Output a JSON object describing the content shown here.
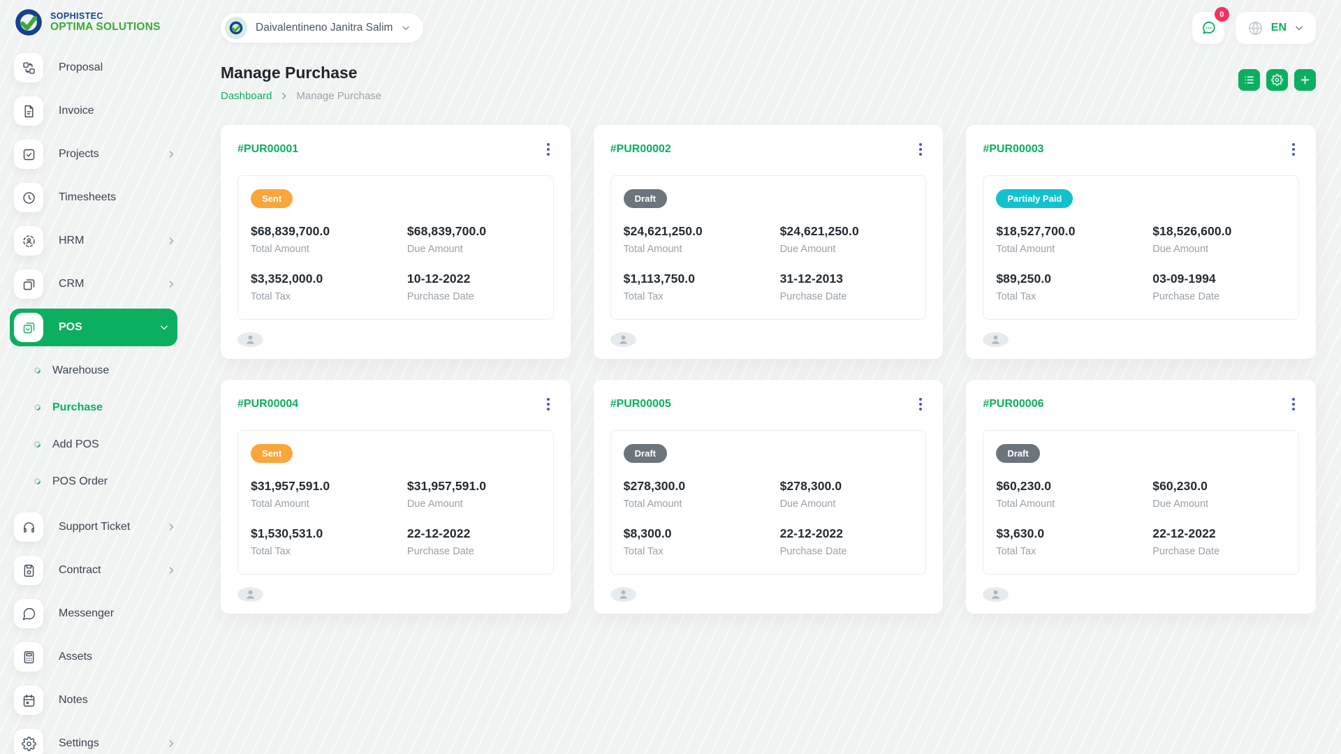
{
  "brand": {
    "line1": "SOPHISTEC",
    "line2": "OPTIMA SOLUTIONS"
  },
  "header": {
    "user_name": "Daivalentineno Janitra Salim",
    "messages_badge": "0",
    "language": "EN"
  },
  "page": {
    "title": "Manage Purchase",
    "breadcrumb_root": "Dashboard",
    "breadcrumb_current": "Manage Purchase"
  },
  "labels": {
    "total_amount": "Total Amount",
    "due_amount": "Due Amount",
    "total_tax": "Total Tax",
    "purchase_date": "Purchase Date"
  },
  "sidebar": {
    "items": [
      {
        "label": "Proposal",
        "icon": "proposal-icon",
        "chevron": false
      },
      {
        "label": "Invoice",
        "icon": "invoice-icon",
        "chevron": false
      },
      {
        "label": "Projects",
        "icon": "projects-icon",
        "chevron": true
      },
      {
        "label": "Timesheets",
        "icon": "timesheets-icon",
        "chevron": false
      },
      {
        "label": "HRM",
        "icon": "hrm-icon",
        "chevron": true
      },
      {
        "label": "CRM",
        "icon": "crm-icon",
        "chevron": true
      },
      {
        "label": "POS",
        "icon": "pos-icon",
        "chevron": true,
        "active": true,
        "expanded": true,
        "children": [
          {
            "label": "Warehouse",
            "active": false
          },
          {
            "label": "Purchase",
            "active": true
          },
          {
            "label": "Add POS",
            "active": false
          },
          {
            "label": "POS Order",
            "active": false
          }
        ]
      },
      {
        "label": "Support Ticket",
        "icon": "support-ticket-icon",
        "chevron": true
      },
      {
        "label": "Contract",
        "icon": "contract-icon",
        "chevron": true
      },
      {
        "label": "Messenger",
        "icon": "messenger-icon",
        "chevron": false
      },
      {
        "label": "Assets",
        "icon": "assets-icon",
        "chevron": false
      },
      {
        "label": "Notes",
        "icon": "notes-icon",
        "chevron": false
      },
      {
        "label": "Settings",
        "icon": "settings-icon",
        "chevron": true
      }
    ]
  },
  "cards": [
    {
      "id": "#PUR00001",
      "status": "Sent",
      "status_key": "sent",
      "total_amount": "$68,839,700.0",
      "due_amount": "$68,839,700.0",
      "total_tax": "$3,352,000.0",
      "purchase_date": "10-12-2022"
    },
    {
      "id": "#PUR00002",
      "status": "Draft",
      "status_key": "draft",
      "total_amount": "$24,621,250.0",
      "due_amount": "$24,621,250.0",
      "total_tax": "$1,113,750.0",
      "purchase_date": "31-12-2013"
    },
    {
      "id": "#PUR00003",
      "status": "Partialy Paid",
      "status_key": "partialy_paid",
      "total_amount": "$18,527,700.0",
      "due_amount": "$18,526,600.0",
      "total_tax": "$89,250.0",
      "purchase_date": "03-09-1994"
    },
    {
      "id": "#PUR00004",
      "status": "Sent",
      "status_key": "sent",
      "total_amount": "$31,957,591.0",
      "due_amount": "$31,957,591.0",
      "total_tax": "$1,530,531.0",
      "purchase_date": "22-12-2022"
    },
    {
      "id": "#PUR00005",
      "status": "Draft",
      "status_key": "draft",
      "total_amount": "$278,300.0",
      "due_amount": "$278,300.0",
      "total_tax": "$8,300.0",
      "purchase_date": "22-12-2022"
    },
    {
      "id": "#PUR00006",
      "status": "Draft",
      "status_key": "draft",
      "total_amount": "$60,230.0",
      "due_amount": "$60,230.0",
      "total_tax": "$3,630.0",
      "purchase_date": "22-12-2022"
    }
  ],
  "colors": {
    "primary": "#0caf60",
    "logo_blue": "#16418f",
    "logo_green": "#3aaa35",
    "menu_dots": "#4d52cc",
    "badge_count": "#f5325c",
    "badges": {
      "sent": "#f9a63a",
      "draft": "#6c757d",
      "partialy_paid": "#12c1ce"
    }
  }
}
